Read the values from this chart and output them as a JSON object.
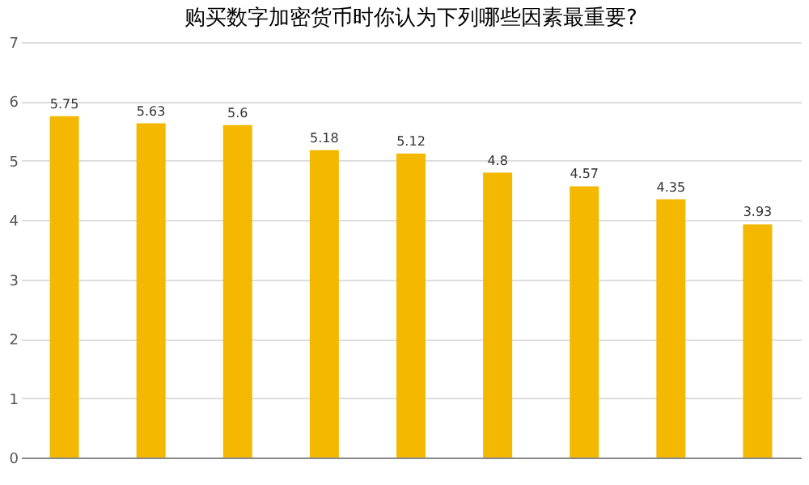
{
  "chart_data": {
    "type": "bar",
    "title": "购买数字加密货币时你认为下列哪些因素最重要?",
    "categories": [
      null,
      null,
      null,
      null,
      null,
      null,
      null,
      null,
      null
    ],
    "values": [
      5.75,
      5.63,
      5.6,
      5.18,
      5.12,
      4.8,
      4.57,
      4.35,
      3.93
    ],
    "color": "#f5b800",
    "ylim": [
      0,
      7
    ],
    "yticks": [
      0,
      1,
      2,
      3,
      4,
      5,
      6,
      7
    ],
    "grid": "y",
    "data_labels": true
  }
}
